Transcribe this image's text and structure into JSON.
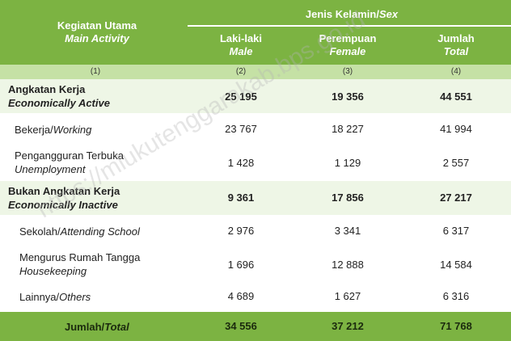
{
  "header": {
    "activity_id": "Kegiatan Utama",
    "activity_en": "Main Activity",
    "sex_id": "Jenis Kelamin/",
    "sex_en": "Sex",
    "male_id": "Laki-laki",
    "male_en": "Male",
    "female_id": "Perempuan",
    "female_en": "Female",
    "total_id": "Jumlah",
    "total_en": "Total"
  },
  "col_numbers": [
    "(1)",
    "(2)",
    "(3)",
    "(4)"
  ],
  "rows": [
    {
      "label_id": "Angkatan Kerja",
      "label_en": "Economically Active",
      "male": "25 195",
      "female": "19 356",
      "total": "44 551"
    },
    {
      "label_id": "Bekerja/",
      "label_en": "Working",
      "male": "23 767",
      "female": "18 227",
      "total": "41 994"
    },
    {
      "label_id": "Pengangguran Terbuka",
      "label_en": "Unemployment",
      "male": "1 428",
      "female": "1 129",
      "total": "2 557"
    },
    {
      "label_id": "Bukan Angkatan Kerja",
      "label_en": "Economically Inactive",
      "male": "9 361",
      "female": "17 856",
      "total": "27 217"
    },
    {
      "label_id": "Sekolah/",
      "label_en": "Attending School",
      "male": "2 976",
      "female": "3 341",
      "total": "6 317"
    },
    {
      "label_id": "Mengurus Rumah Tangga",
      "label_en": "Housekeeping",
      "male": "1 696",
      "female": "12 888",
      "total": "14 584"
    },
    {
      "label_id": "Lainnya/",
      "label_en": "Others",
      "male": "4 689",
      "female": "1 627",
      "total": "6 316"
    }
  ],
  "footer": {
    "label_id": "Jumlah/",
    "label_en": "Total",
    "male": "34 556",
    "female": "37 212",
    "total": "71 768"
  },
  "watermark": "https://mlukutenggarakab.bps.go.id",
  "colors": {
    "header_green": "#7cb342",
    "light_band": "#eef6e6",
    "number_row": "#c5e1a5"
  }
}
